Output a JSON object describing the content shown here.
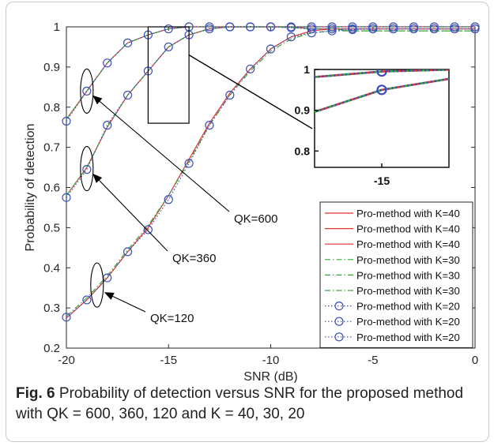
{
  "chart_data": {
    "type": "line",
    "xlabel": "SNR (dB)",
    "ylabel": "Probability of detection",
    "xlim": [
      -20,
      0
    ],
    "ylim": [
      0.2,
      1.0
    ],
    "x_ticks": [
      -20,
      -15,
      -10,
      -5,
      0
    ],
    "x_tick_labels": [
      "-20",
      "-15",
      "-10",
      "-5",
      "0"
    ],
    "y_ticks": [
      0.2,
      0.3,
      0.4,
      0.5,
      0.6,
      0.7,
      0.8,
      0.9,
      1.0
    ],
    "y_tick_labels": [
      "0.2",
      "0.3",
      "0.4",
      "0.5",
      "0.6",
      "0.7",
      "0.8",
      "0.9",
      "1"
    ],
    "grid": false,
    "legend_position": "lower-right",
    "x": [
      -20,
      -19,
      -18,
      -17,
      -16,
      -15,
      -14,
      -13,
      -12,
      -11,
      -10,
      -9,
      -8,
      -7,
      -6,
      -5,
      -4,
      -3,
      -2,
      -1,
      0
    ],
    "series": [
      {
        "name": "Pro-method with K=40",
        "group": "QK=600",
        "style": "solid",
        "color": "#e8322c",
        "values": [
          0.77,
          0.84,
          0.91,
          0.96,
          0.98,
          0.995,
          1.0,
          1.0,
          1.0,
          1.0,
          1.0,
          1.0,
          1.0,
          1.0,
          1.0,
          1.0,
          1.0,
          1.0,
          1.0,
          1.0,
          1.0
        ]
      },
      {
        "name": "Pro-method with K=40",
        "group": "QK=360",
        "style": "solid",
        "color": "#e8322c",
        "values": [
          0.58,
          0.65,
          0.75,
          0.83,
          0.89,
          0.95,
          0.98,
          0.995,
          1.0,
          1.0,
          1.0,
          1.0,
          0.995,
          0.995,
          0.995,
          0.995,
          0.995,
          0.995,
          0.995,
          0.995,
          0.995
        ]
      },
      {
        "name": "Pro-method with K=40",
        "group": "QK=120",
        "style": "solid",
        "color": "#e8322c",
        "values": [
          0.275,
          0.32,
          0.375,
          0.44,
          0.5,
          0.58,
          0.67,
          0.76,
          0.835,
          0.895,
          0.945,
          0.975,
          0.99,
          0.995,
          0.995,
          0.995,
          0.995,
          0.995,
          0.995,
          0.995,
          0.995
        ]
      },
      {
        "name": "Pro-method with K=30",
        "group": "QK=600",
        "style": "dashdot",
        "color": "#3aa63a",
        "values": [
          0.77,
          0.84,
          0.91,
          0.96,
          0.98,
          0.995,
          1.0,
          1.0,
          1.0,
          1.0,
          1.0,
          1.0,
          1.0,
          1.0,
          1.0,
          1.0,
          1.0,
          1.0,
          1.0,
          1.0,
          1.0
        ]
      },
      {
        "name": "Pro-method with K=30",
        "group": "QK=360",
        "style": "dashdot",
        "color": "#3aa63a",
        "values": [
          0.58,
          0.65,
          0.75,
          0.83,
          0.89,
          0.95,
          0.98,
          0.995,
          1.0,
          1.0,
          1.0,
          0.998,
          0.995,
          0.995,
          0.99,
          0.99,
          0.99,
          0.99,
          0.99,
          0.99,
          0.99
        ]
      },
      {
        "name": "Pro-method with K=30",
        "group": "QK=120",
        "style": "dashdot",
        "color": "#3aa63a",
        "values": [
          0.28,
          0.325,
          0.38,
          0.445,
          0.505,
          0.58,
          0.665,
          0.755,
          0.83,
          0.89,
          0.94,
          0.97,
          0.985,
          0.99,
          0.99,
          0.99,
          0.99,
          0.99,
          0.99,
          0.99,
          0.99
        ]
      },
      {
        "name": "Pro-method with K=20",
        "group": "QK=600",
        "style": "dotted-circle",
        "color": "#3b4fb8",
        "values": [
          0.765,
          0.84,
          0.91,
          0.96,
          0.98,
          0.995,
          1.0,
          1.0,
          1.0,
          1.0,
          1.0,
          1.0,
          1.0,
          1.0,
          1.0,
          1.0,
          1.0,
          1.0,
          1.0,
          1.0,
          1.0
        ]
      },
      {
        "name": "Pro-method with K=20",
        "group": "QK=360",
        "style": "dotted-circle",
        "color": "#3b4fb8",
        "values": [
          0.575,
          0.645,
          0.755,
          0.83,
          0.89,
          0.95,
          0.98,
          0.995,
          1.0,
          1.0,
          1.0,
          0.998,
          0.995,
          0.995,
          0.995,
          0.995,
          0.995,
          0.995,
          0.995,
          0.995,
          0.995
        ]
      },
      {
        "name": "Pro-method with K=20",
        "group": "QK=120",
        "style": "dotted-circle",
        "color": "#3b4fb8",
        "values": [
          0.277,
          0.32,
          0.375,
          0.44,
          0.495,
          0.57,
          0.66,
          0.755,
          0.83,
          0.895,
          0.945,
          0.975,
          0.985,
          0.99,
          0.993,
          0.995,
          0.995,
          0.995,
          0.995,
          0.995,
          0.995
        ]
      }
    ],
    "annotations": [
      {
        "text": "QK=600",
        "target_x": -19,
        "target_y": 0.84
      },
      {
        "text": "QK=360",
        "target_x": -19,
        "target_y": 0.645
      },
      {
        "text": "QK=120",
        "target_x": -18.5,
        "target_y": 0.35
      }
    ],
    "inset": {
      "x_tick_labels": [
        "-15"
      ],
      "y_tick_labels": [
        "1",
        "0.9",
        "0.8"
      ],
      "xlim": [
        -15.9,
        -14.1
      ],
      "ylim": [
        0.76,
        1.0
      ],
      "zoom_box": {
        "xlim": [
          -16,
          -14
        ],
        "ylim": [
          0.76,
          1.0
        ]
      }
    }
  },
  "caption": {
    "label": "Fig. 6",
    "text": "Probability of detection versus SNR for the proposed method\nwith QK = 600, 360, 120 and K = 40, 30, 20"
  }
}
